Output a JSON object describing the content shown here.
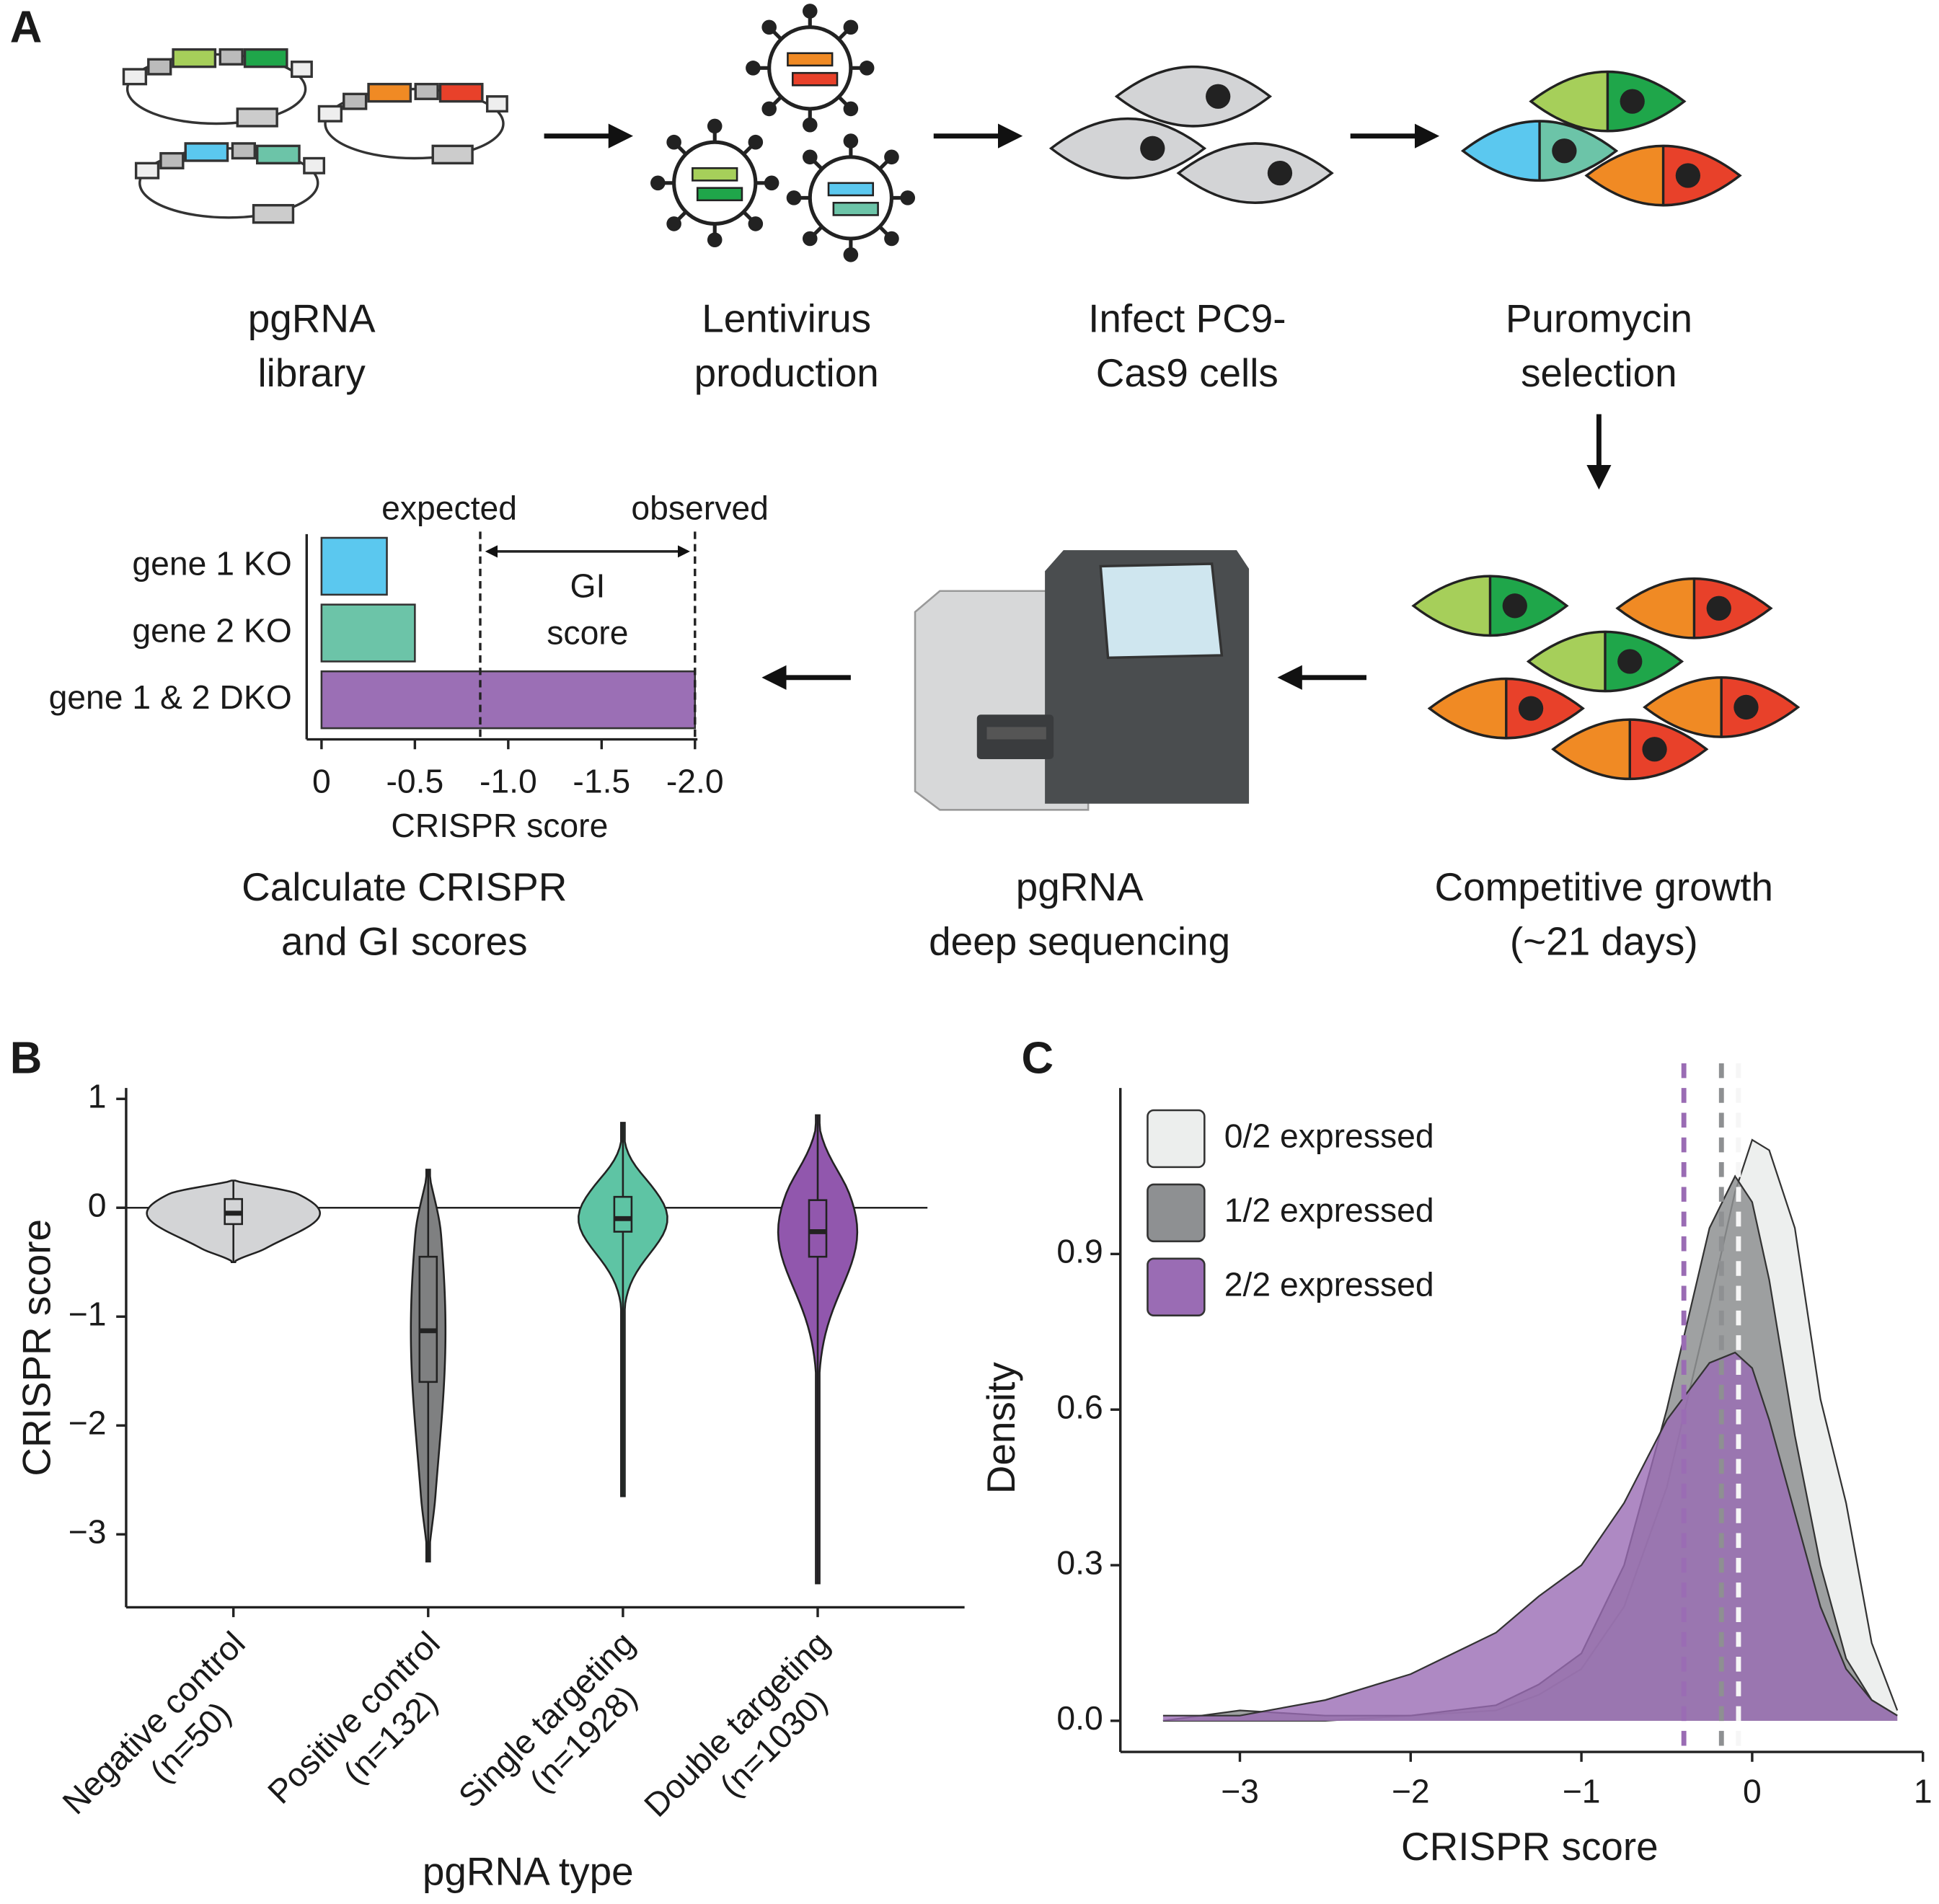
{
  "panels": {
    "a": "A",
    "b": "B",
    "c": "C"
  },
  "workflow": {
    "steps": [
      {
        "lines": [
          "pgRNA",
          "library"
        ]
      },
      {
        "lines": [
          "Lentivirus",
          "production"
        ]
      },
      {
        "lines": [
          "Infect PC9-",
          "Cas9 cells"
        ]
      },
      {
        "lines": [
          "Puromycin",
          "selection"
        ]
      },
      {
        "lines": [
          "Competitive growth",
          "(~21 days)"
        ]
      },
      {
        "lines": [
          "pgRNA",
          "deep sequencing"
        ]
      },
      {
        "lines": [
          "Calculate CRISPR",
          "and GI scores"
        ]
      }
    ]
  },
  "chart_data": [
    {
      "type": "bar",
      "orientation": "horizontal",
      "categories": [
        "gene 1 KO",
        "gene 2 KO",
        "gene 1 & 2 DKO"
      ],
      "values": [
        -0.35,
        -0.5,
        -2.0
      ],
      "colors": [
        "#5bc8ef",
        "#6cc4a8",
        "#9b6fb5"
      ],
      "xlabel": "CRISPR score",
      "xlim": [
        0,
        -2.0
      ],
      "xticks": [
        0,
        -0.5,
        {
          "value": -1,
          "label": "-1.0"
        },
        -1.5,
        {
          "value": -2,
          "label": "-2.0"
        }
      ],
      "reference_lines": [
        {
          "label": "expected",
          "value": -0.85
        },
        {
          "label": "observed",
          "value": -2.0
        }
      ],
      "annotation": [
        "GI",
        "score"
      ]
    },
    {
      "type": "violin",
      "categories": [
        [
          "Negative control",
          "(n=50)"
        ],
        [
          "Positive control",
          "(n=132)"
        ],
        [
          "Single targeting",
          "(n=1928)"
        ],
        [
          "Double targeting",
          "(n=1030)"
        ]
      ],
      "colors": [
        "#d3d4d6",
        "#7f8081",
        "#5ec4a4",
        "#9157ad"
      ],
      "min": [
        -0.5,
        -3.25,
        -2.65,
        -3.45
      ],
      "q1": [
        -0.15,
        -1.6,
        -0.22,
        -0.45
      ],
      "median": [
        -0.05,
        -1.13,
        -0.1,
        -0.22
      ],
      "q3": [
        0.08,
        -0.45,
        0.1,
        0.07
      ],
      "max": [
        0.25,
        0.35,
        0.78,
        0.85
      ],
      "xlabel": "pgRNA type",
      "ylabel": "CRISPR score",
      "ylim": [
        -3.67,
        1.1
      ],
      "yticks": [
        {
          "value": -3,
          "label": "−3"
        },
        {
          "value": -2,
          "label": "−2"
        },
        {
          "value": -1,
          "label": "−1"
        },
        0,
        1
      ],
      "hline": 0
    },
    {
      "type": "density",
      "xlabel": "CRISPR score",
      "ylabel": "Density",
      "x": [
        -3.45,
        -3,
        -2.5,
        -2,
        -1.5,
        -1.25,
        -1,
        -0.75,
        -0.5,
        -0.25,
        -0.1,
        0,
        0.1,
        0.25,
        0.4,
        0.55,
        0.7,
        0.85
      ],
      "series": [
        {
          "name": "0/2 expressed",
          "color": "#eceeed",
          "mean": -0.08,
          "values": [
            0.0,
            0.0,
            0.0,
            0.01,
            0.02,
            0.05,
            0.1,
            0.22,
            0.45,
            0.8,
            1.02,
            1.12,
            1.1,
            0.95,
            0.62,
            0.42,
            0.15,
            0.02
          ]
        },
        {
          "name": "1/2 expressed",
          "color": "#8e9092",
          "mean": -0.18,
          "values": [
            0.0,
            0.02,
            0.01,
            0.01,
            0.03,
            0.07,
            0.13,
            0.3,
            0.6,
            0.95,
            1.05,
            1.0,
            0.85,
            0.55,
            0.3,
            0.12,
            0.04,
            0.01
          ]
        },
        {
          "name": "2/2 expressed",
          "color": "#9a6cb4",
          "mean": -0.4,
          "values": [
            0.01,
            0.01,
            0.04,
            0.09,
            0.17,
            0.24,
            0.3,
            0.42,
            0.58,
            0.69,
            0.71,
            0.68,
            0.58,
            0.4,
            0.22,
            0.1,
            0.04,
            0.01
          ]
        }
      ],
      "xlim": [
        -3.7,
        1.0
      ],
      "xticks": [
        {
          "value": -3,
          "label": "−3"
        },
        {
          "value": -2,
          "label": "−2"
        },
        {
          "value": -1,
          "label": "−1"
        },
        0,
        1
      ],
      "ylim": [
        -0.06,
        1.22
      ],
      "yticks": [
        {
          "value": 0,
          "label": "0.0"
        },
        0.3,
        0.6,
        0.9
      ],
      "legend": "top-left"
    }
  ]
}
